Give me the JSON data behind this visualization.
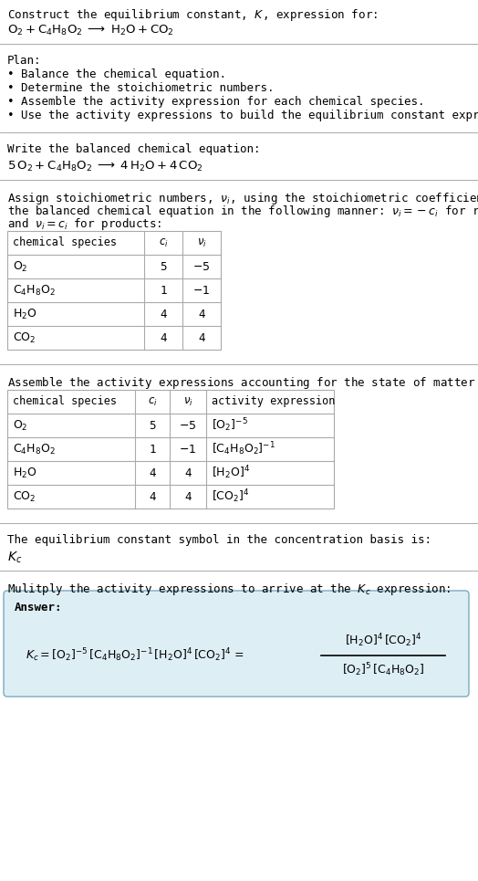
{
  "title_line1": "Construct the equilibrium constant, $K$, expression for:",
  "title_line2": "$\\mathrm{O_2 + C_4H_8O_2 \\;\\longrightarrow\\; H_2O + CO_2}$",
  "plan_header": "Plan:",
  "plan_bullets": [
    "\\bullet  Balance the chemical equation.",
    "\\bullet  Determine the stoichiometric numbers.",
    "\\bullet  Assemble the activity expression for each chemical species.",
    "\\bullet  Use the activity expressions to build the equilibrium constant expression."
  ],
  "balanced_header": "Write the balanced chemical equation:",
  "balanced_eq": "$\\mathrm{5\\,O_2 + C_4H_8O_2 \\;\\longrightarrow\\; 4\\,H_2O + 4\\,CO_2}$",
  "stoich_intro1": "Assign stoichiometric numbers, $\\nu_i$, using the stoichiometric coefficients, $c_i$, from",
  "stoich_intro2": "the balanced chemical equation in the following manner: $\\nu_i = -c_i$ for reactants",
  "stoich_intro3": "and $\\nu_i = c_i$ for products:",
  "table1_headers": [
    "chemical species",
    "$c_i$",
    "$\\nu_i$"
  ],
  "table1_rows": [
    [
      "$\\mathrm{O_2}$",
      "5",
      "$-5$"
    ],
    [
      "$\\mathrm{C_4H_8O_2}$",
      "1",
      "$-1$"
    ],
    [
      "$\\mathrm{H_2O}$",
      "4",
      "4"
    ],
    [
      "$\\mathrm{CO_2}$",
      "4",
      "4"
    ]
  ],
  "activity_intro": "Assemble the activity expressions accounting for the state of matter and $\\nu_i$:",
  "table2_headers": [
    "chemical species",
    "$c_i$",
    "$\\nu_i$",
    "activity expression"
  ],
  "table2_rows": [
    [
      "$\\mathrm{O_2}$",
      "5",
      "$-5$",
      "$[\\mathrm{O_2}]^{-5}$"
    ],
    [
      "$\\mathrm{C_4H_8O_2}$",
      "1",
      "$-1$",
      "$[\\mathrm{C_4H_8O_2}]^{-1}$"
    ],
    [
      "$\\mathrm{H_2O}$",
      "4",
      "4",
      "$[\\mathrm{H_2O}]^{4}$"
    ],
    [
      "$\\mathrm{CO_2}$",
      "4",
      "4",
      "$[\\mathrm{CO_2}]^{4}$"
    ]
  ],
  "kc_symbol_text": "The equilibrium constant symbol in the concentration basis is:",
  "kc_symbol": "$K_c$",
  "multiply_text": "Mulitply the activity expressions to arrive at the $K_c$ expression:",
  "answer_label": "Answer:",
  "answer_box_color": "#deeef5",
  "answer_box_edge": "#7aabbf",
  "bg_color": "#ffffff",
  "text_color": "#000000",
  "table_line_color": "#aaaaaa",
  "separator_color": "#aaaaaa",
  "font_family": "DejaVu Sans Mono",
  "fontsize": 9.0
}
